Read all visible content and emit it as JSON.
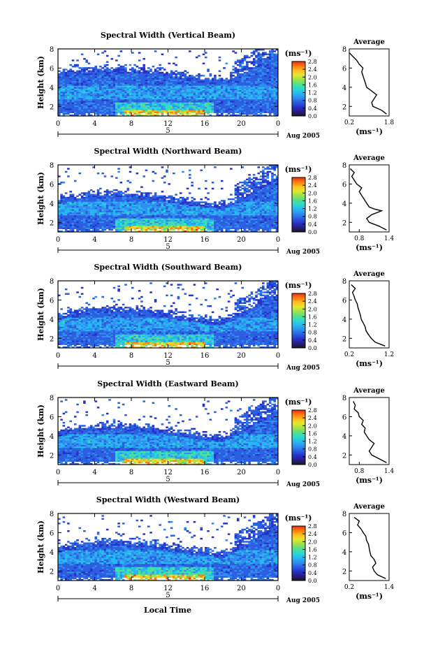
{
  "figure": {
    "xlabel": "Local Time",
    "date_label": "Aug 2005",
    "cbar_unit": "(ms⁻¹)",
    "avg_title": "Average",
    "avg_unit": "(ms⁻¹)"
  },
  "colors": {
    "colormap": [
      "#1a1a1a",
      "#2a1a8a",
      "#2633c8",
      "#2c5fe0",
      "#2f8ef0",
      "#27b8f0",
      "#2ed8d0",
      "#52e08c",
      "#9ce24a",
      "#e2e830",
      "#ffc020",
      "#ff7a10",
      "#ee2a10"
    ]
  },
  "chart_data": [
    {
      "type": "heatmap",
      "title": "Spectral Width (Vertical Beam)",
      "ylabel": "Height (km)",
      "x_ticks": [
        "0",
        "4",
        "8",
        "12",
        "16",
        "20",
        "0"
      ],
      "x_day": "5",
      "y_ticks": [
        "2",
        "4",
        "6",
        "8"
      ],
      "xlim": [
        0,
        24
      ],
      "ylim": [
        1,
        8
      ],
      "cbar_ticks": [
        "0.0",
        "0.4",
        "0.8",
        "1.2",
        "1.6",
        "2.0",
        "2.4",
        "2.8"
      ],
      "cbar_range": [
        0,
        2.8
      ],
      "avg_x_ticks": [
        "0.2",
        "1.8"
      ],
      "avg_xlim": [
        0.2,
        1.8
      ],
      "avg_ylim": [
        1,
        8
      ],
      "avg_y_ticks": [
        "2",
        "4",
        "6",
        "8"
      ],
      "avg_profile": {
        "height": [
          1.2,
          1.6,
          2.0,
          2.4,
          2.8,
          3.2,
          3.6,
          4.0,
          4.4,
          4.8,
          5.2,
          5.6,
          6.0,
          6.4,
          6.8,
          7.2,
          7.6
        ],
        "width": [
          1.7,
          1.5,
          1.15,
          1.1,
          1.2,
          1.3,
          1.1,
          0.9,
          0.85,
          0.8,
          0.75,
          0.7,
          0.75,
          0.6,
          0.5,
          0.35,
          0.2
        ]
      }
    },
    {
      "type": "heatmap",
      "title": "Spectral Width (Northward Beam)",
      "ylabel": "Height (km)",
      "x_ticks": [
        "0",
        "4",
        "8",
        "12",
        "16",
        "20",
        "0"
      ],
      "x_day": "5",
      "y_ticks": [
        "2",
        "4",
        "6",
        "8"
      ],
      "xlim": [
        0,
        24
      ],
      "ylim": [
        1,
        8
      ],
      "cbar_ticks": [
        "0.0",
        "0.4",
        "0.8",
        "1.2",
        "1.6",
        "2.0",
        "2.4",
        "2.8"
      ],
      "cbar_range": [
        0,
        2.8
      ],
      "avg_x_ticks": [
        "0.8",
        "1.4"
      ],
      "avg_xlim": [
        0.6,
        1.4
      ],
      "avg_ylim": [
        1,
        8
      ],
      "avg_y_ticks": [
        "2",
        "4",
        "6",
        "8"
      ],
      "avg_profile": {
        "height": [
          1.2,
          1.6,
          2.0,
          2.4,
          2.8,
          3.2,
          3.4,
          3.6,
          4.0,
          4.4,
          4.8,
          5.2,
          5.6,
          6.0,
          6.4,
          6.8,
          7.2,
          7.6
        ],
        "width": [
          1.35,
          1.2,
          1.0,
          0.95,
          1.05,
          1.25,
          1.1,
          1.0,
          0.95,
          0.9,
          0.85,
          0.8,
          0.85,
          0.75,
          0.7,
          0.65,
          0.7,
          0.62
        ]
      }
    },
    {
      "type": "heatmap",
      "title": "Spectral Width (Southward Beam)",
      "ylabel": "Height (km)",
      "x_ticks": [
        "0",
        "4",
        "8",
        "12",
        "16",
        "20",
        "0"
      ],
      "x_day": "5",
      "y_ticks": [
        "2",
        "4",
        "6",
        "8"
      ],
      "xlim": [
        0,
        24
      ],
      "ylim": [
        1,
        8
      ],
      "cbar_ticks": [
        "0.0",
        "0.4",
        "0.8",
        "1.2",
        "1.6",
        "2.0",
        "2.4",
        "2.8"
      ],
      "cbar_range": [
        0,
        2.8
      ],
      "avg_x_ticks": [
        "0.2",
        "1.2"
      ],
      "avg_xlim": [
        0.2,
        1.2
      ],
      "avg_ylim": [
        1,
        8
      ],
      "avg_y_ticks": [
        "2",
        "4",
        "6",
        "8"
      ],
      "avg_profile": {
        "height": [
          1.2,
          1.6,
          2.0,
          2.4,
          2.8,
          3.2,
          3.6,
          4.0,
          4.4,
          4.8,
          5.2,
          5.6,
          6.0,
          6.4,
          6.8,
          7.2,
          7.6
        ],
        "width": [
          1.1,
          0.85,
          0.75,
          0.68,
          0.62,
          0.6,
          0.55,
          0.5,
          0.48,
          0.45,
          0.42,
          0.4,
          0.35,
          0.32,
          0.28,
          0.35,
          0.25
        ]
      }
    },
    {
      "type": "heatmap",
      "title": "Spectral Width (Eastward Beam)",
      "ylabel": "Height (km)",
      "x_ticks": [
        "0",
        "4",
        "8",
        "12",
        "16",
        "20",
        "0"
      ],
      "x_day": "5",
      "y_ticks": [
        "2",
        "4",
        "6",
        "8"
      ],
      "xlim": [
        0,
        24
      ],
      "ylim": [
        1,
        8
      ],
      "cbar_ticks": [
        "0.0",
        "0.4",
        "0.8",
        "1.2",
        "1.6",
        "2.0",
        "2.4",
        "2.8"
      ],
      "cbar_range": [
        0,
        2.8
      ],
      "avg_x_ticks": [
        "0.8",
        "1.4"
      ],
      "avg_xlim": [
        0.6,
        1.4
      ],
      "avg_ylim": [
        1,
        8
      ],
      "avg_y_ticks": [
        "2",
        "4",
        "6",
        "8"
      ],
      "avg_profile": {
        "height": [
          1.2,
          1.6,
          2.0,
          2.4,
          2.8,
          3.2,
          3.6,
          4.0,
          4.4,
          4.8,
          5.2,
          5.6,
          6.0,
          6.4,
          6.8,
          7.2,
          7.6
        ],
        "width": [
          1.35,
          1.2,
          1.05,
          1.0,
          1.05,
          1.1,
          1.0,
          0.95,
          0.9,
          0.92,
          0.85,
          0.88,
          0.8,
          0.78,
          0.7,
          0.72,
          0.68
        ]
      }
    },
    {
      "type": "heatmap",
      "title": "Spectral Width (Westward Beam)",
      "ylabel": "Height (km)",
      "x_ticks": [
        "0",
        "4",
        "8",
        "12",
        "16",
        "20",
        "0"
      ],
      "x_day": "5",
      "y_ticks": [
        "2",
        "4",
        "6",
        "8"
      ],
      "xlim": [
        0,
        24
      ],
      "ylim": [
        1,
        8
      ],
      "cbar_ticks": [
        "0.0",
        "0.4",
        "0.8",
        "1.2",
        "1.6",
        "2.0",
        "2.4",
        "2.8"
      ],
      "cbar_range": [
        0,
        2.8
      ],
      "avg_x_ticks": [
        "0.2",
        "1.4"
      ],
      "avg_xlim": [
        0.2,
        1.4
      ],
      "avg_ylim": [
        1,
        8
      ],
      "avg_y_ticks": [
        "2",
        "4",
        "6",
        "8"
      ],
      "avg_profile": {
        "height": [
          1.2,
          1.6,
          2.0,
          2.4,
          2.8,
          3.2,
          3.6,
          4.0,
          4.4,
          4.8,
          5.2,
          5.6,
          6.0,
          6.4,
          6.8,
          7.2,
          7.6
        ],
        "width": [
          1.3,
          1.05,
          0.95,
          0.9,
          1.0,
          0.95,
          0.85,
          0.82,
          0.8,
          0.78,
          0.72,
          0.7,
          0.62,
          0.55,
          0.45,
          0.5,
          0.35
        ]
      }
    }
  ]
}
